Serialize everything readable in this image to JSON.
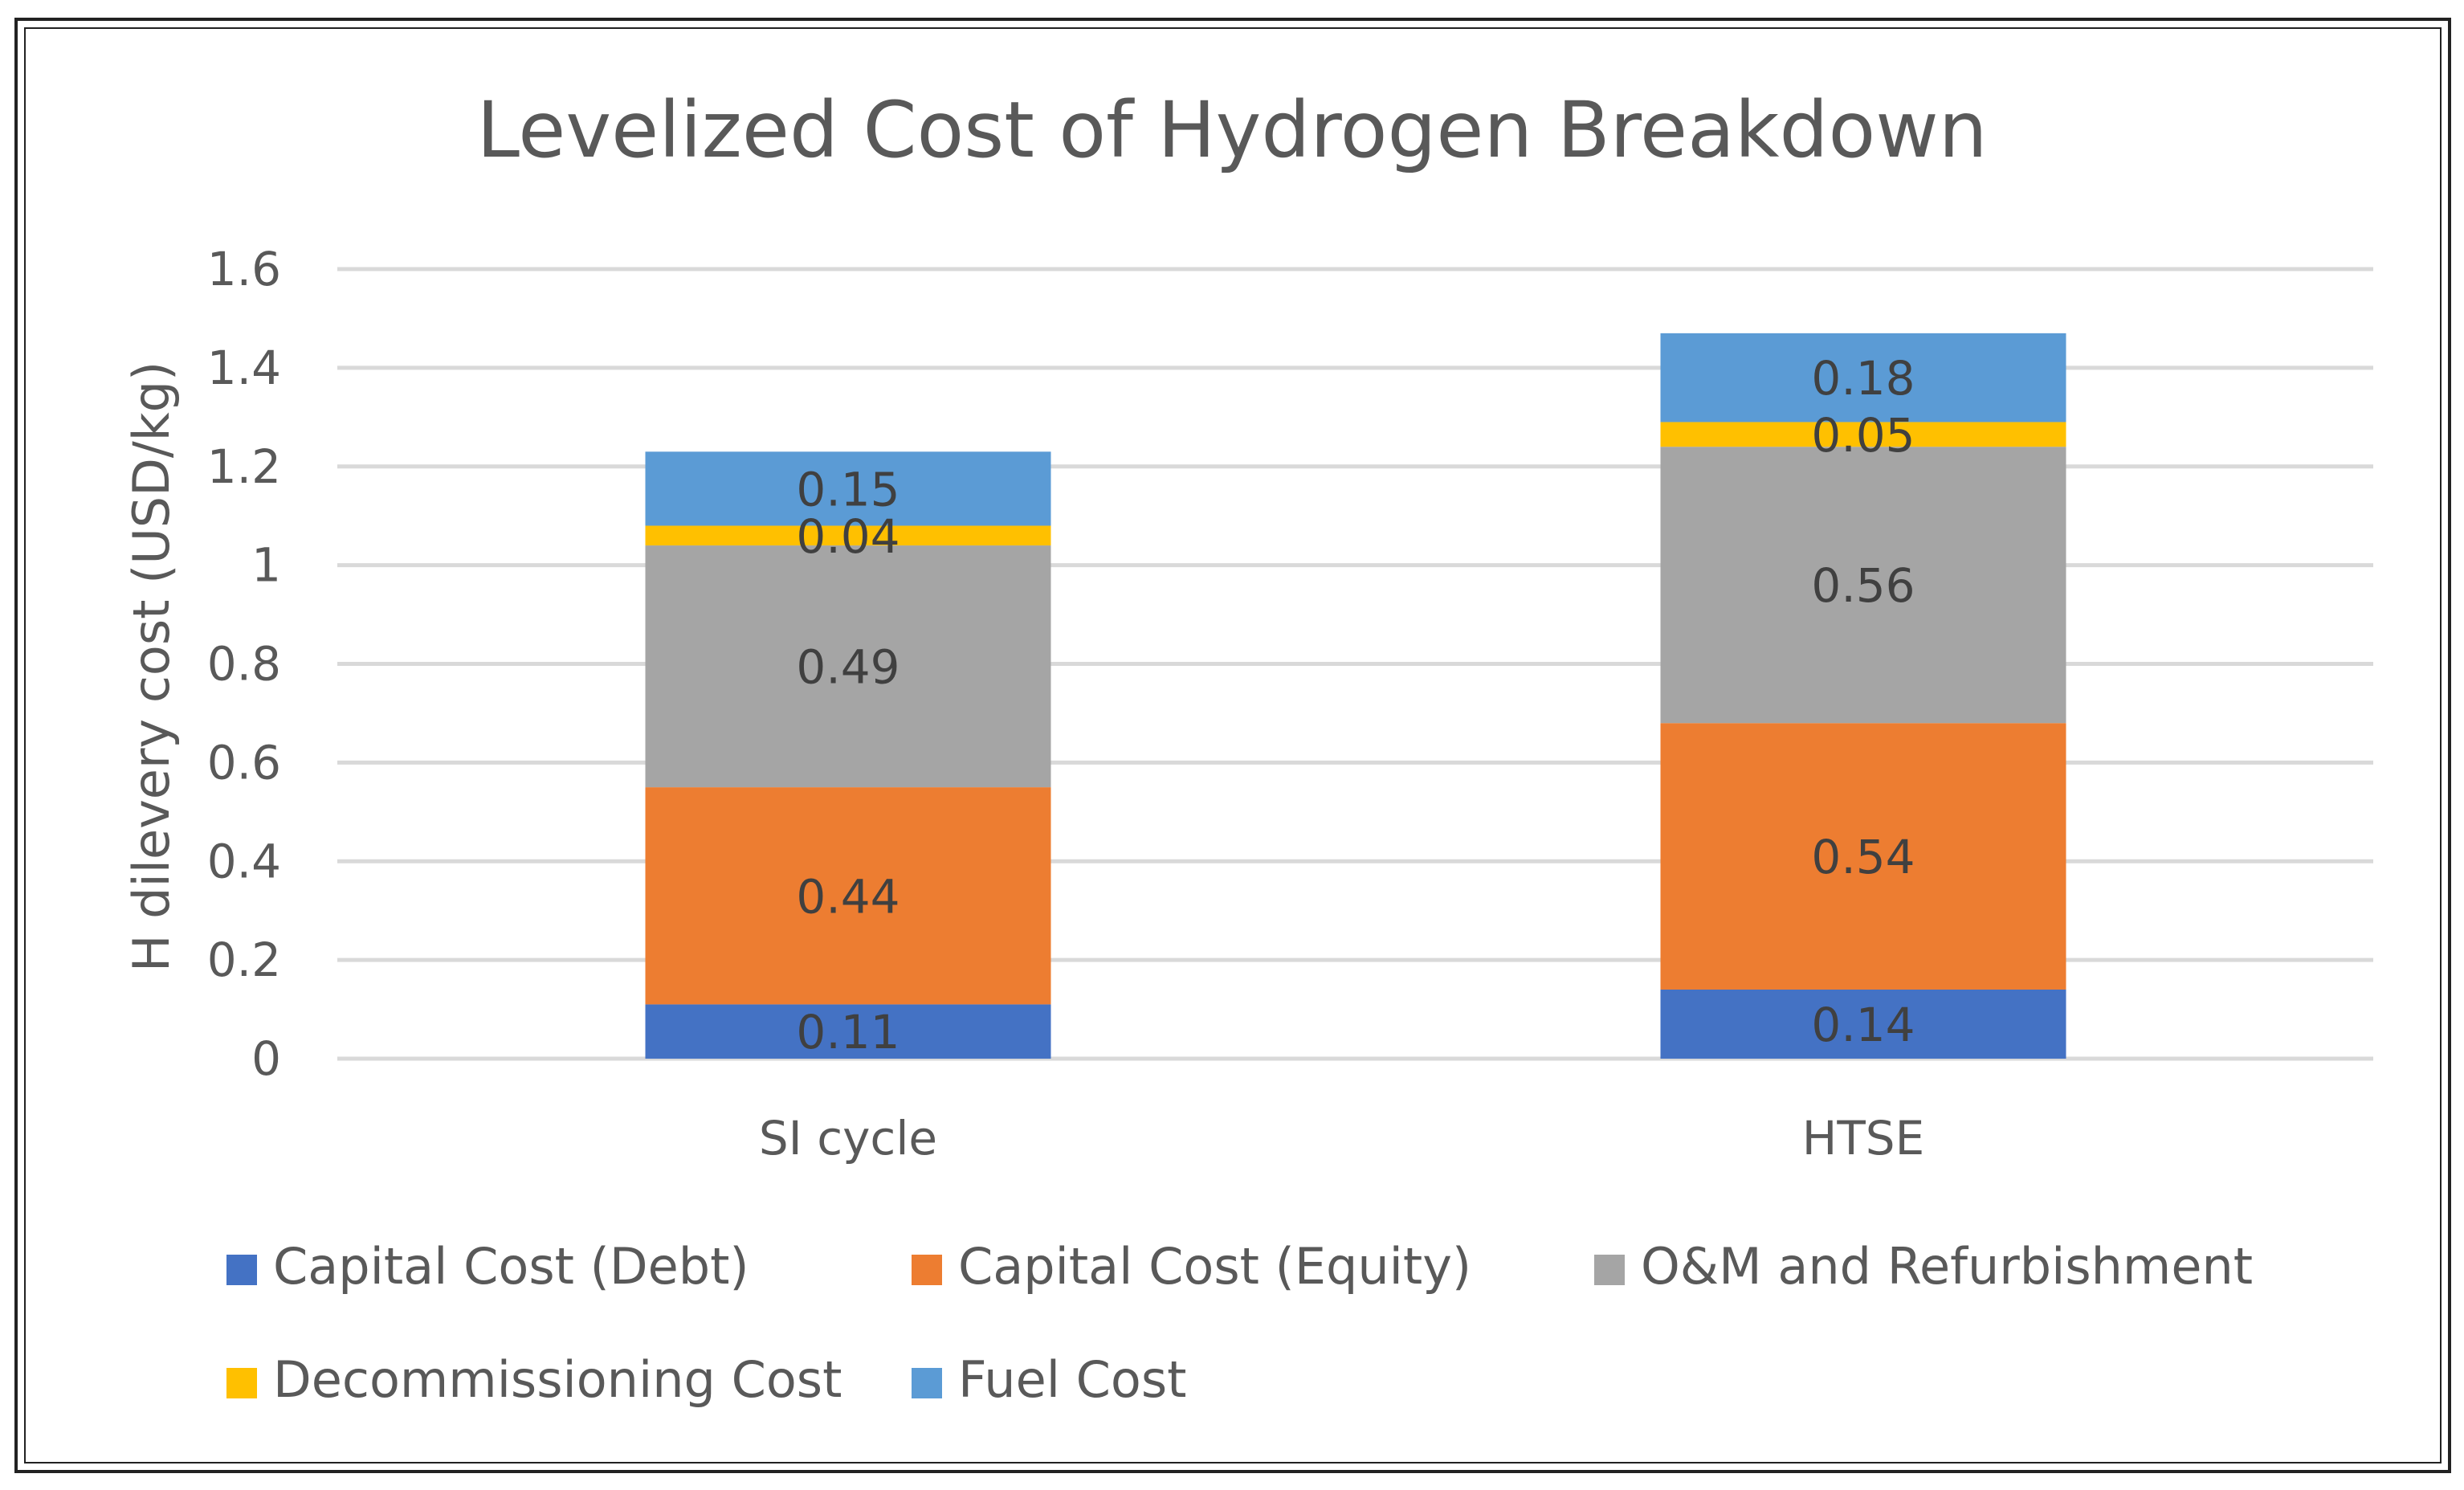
{
  "chart_data": {
    "type": "bar",
    "stacked": true,
    "title": "Levelized Cost of Hydrogen Breakdown",
    "xlabel": "",
    "ylabel": "H dilevery cost (USD/kg)",
    "ylim": [
      0,
      1.6
    ],
    "yticks": [
      0,
      0.2,
      0.4,
      0.6,
      0.8,
      1,
      1.2,
      1.4,
      1.6
    ],
    "ytick_labels": [
      "0",
      "0.2",
      "0.4",
      "0.6",
      "0.8",
      "1",
      "1.2",
      "1.4",
      "1.6"
    ],
    "grid": true,
    "legend_position": "bottom",
    "categories": [
      "SI cycle",
      "HTSE"
    ],
    "series": [
      {
        "name": "Capital Cost (Debt)",
        "color": "#4472C4",
        "values": [
          0.11,
          0.14
        ],
        "labels": [
          "0.11",
          "0.14"
        ]
      },
      {
        "name": "Capital Cost (Equity)",
        "color": "#ED7D31",
        "values": [
          0.44,
          0.54
        ],
        "labels": [
          "0.44",
          "0.54"
        ]
      },
      {
        "name": "O&M and Refurbishment",
        "color": "#A5A5A5",
        "values": [
          0.49,
          0.56
        ],
        "labels": [
          "0.49",
          "0.56"
        ]
      },
      {
        "name": "Decommissioning Cost",
        "color": "#FFC000",
        "values": [
          0.04,
          0.05
        ],
        "labels": [
          "0.04",
          "0.05"
        ]
      },
      {
        "name": "Fuel Cost",
        "color": "#5B9BD5",
        "values": [
          0.15,
          0.18
        ],
        "labels": [
          "0.15",
          "0.18"
        ]
      }
    ]
  }
}
